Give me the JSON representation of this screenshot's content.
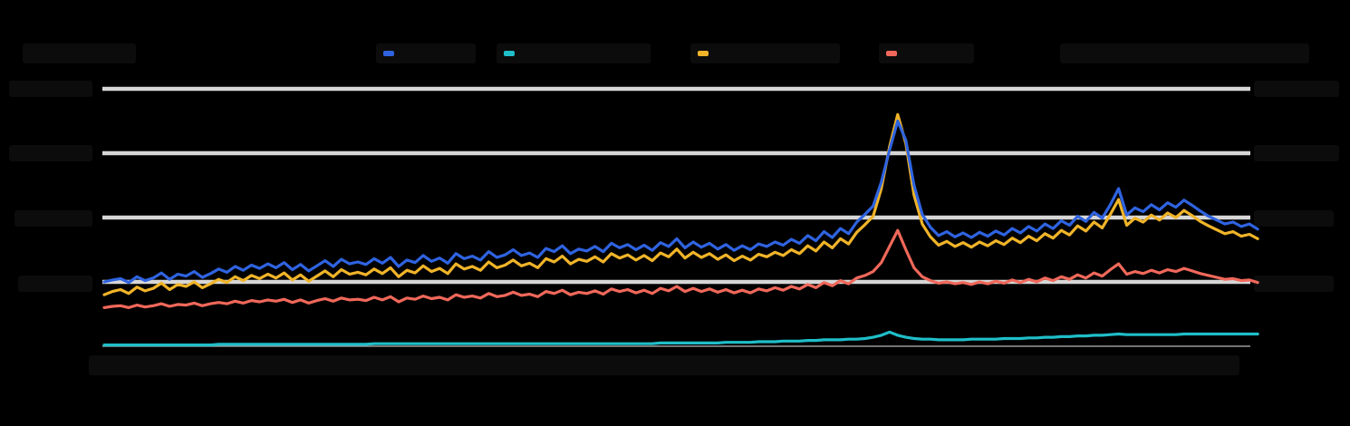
{
  "chart_data": {
    "type": "line",
    "title": "",
    "xlabel": "",
    "ylabel": "",
    "y_left_range": [
      0,
      4
    ],
    "y_right_range": [
      0,
      4
    ],
    "grid": true,
    "legend_placement": "top-center",
    "x_count": 140,
    "series": [
      {
        "key": "blue",
        "color": "#2f63e0",
        "axis": "left",
        "values": [
          1.0,
          1.03,
          1.05,
          0.99,
          1.08,
          1.02,
          1.06,
          1.14,
          1.04,
          1.12,
          1.09,
          1.16,
          1.07,
          1.13,
          1.2,
          1.15,
          1.24,
          1.18,
          1.26,
          1.21,
          1.28,
          1.22,
          1.3,
          1.19,
          1.27,
          1.17,
          1.25,
          1.33,
          1.24,
          1.35,
          1.28,
          1.31,
          1.27,
          1.36,
          1.29,
          1.38,
          1.24,
          1.34,
          1.3,
          1.41,
          1.32,
          1.37,
          1.29,
          1.44,
          1.36,
          1.4,
          1.34,
          1.47,
          1.38,
          1.42,
          1.5,
          1.41,
          1.45,
          1.38,
          1.52,
          1.47,
          1.56,
          1.44,
          1.51,
          1.48,
          1.55,
          1.47,
          1.6,
          1.53,
          1.58,
          1.5,
          1.57,
          1.49,
          1.61,
          1.55,
          1.67,
          1.53,
          1.62,
          1.54,
          1.6,
          1.51,
          1.58,
          1.49,
          1.56,
          1.5,
          1.59,
          1.55,
          1.62,
          1.57,
          1.66,
          1.6,
          1.72,
          1.64,
          1.78,
          1.69,
          1.83,
          1.75,
          1.93,
          2.05,
          2.18,
          2.55,
          3.05,
          3.5,
          3.2,
          2.5,
          2.05,
          1.85,
          1.72,
          1.78,
          1.7,
          1.76,
          1.69,
          1.77,
          1.71,
          1.79,
          1.73,
          1.83,
          1.76,
          1.86,
          1.79,
          1.9,
          1.83,
          1.95,
          1.88,
          2.02,
          1.94,
          2.08,
          1.99,
          2.2,
          2.45,
          2.04,
          2.15,
          2.09,
          2.2,
          2.12,
          2.23,
          2.16,
          2.27,
          2.19,
          2.1,
          2.02,
          1.96,
          1.9,
          1.93,
          1.86,
          1.9,
          1.82
        ]
      },
      {
        "key": "cyan",
        "color": "#1fbec8",
        "axis": "left",
        "values": [
          0.02,
          0.02,
          0.02,
          0.02,
          0.02,
          0.02,
          0.02,
          0.02,
          0.02,
          0.02,
          0.02,
          0.02,
          0.02,
          0.02,
          0.03,
          0.03,
          0.03,
          0.03,
          0.03,
          0.03,
          0.03,
          0.03,
          0.03,
          0.03,
          0.03,
          0.03,
          0.03,
          0.03,
          0.03,
          0.03,
          0.03,
          0.03,
          0.03,
          0.04,
          0.04,
          0.04,
          0.04,
          0.04,
          0.04,
          0.04,
          0.04,
          0.04,
          0.04,
          0.04,
          0.04,
          0.04,
          0.04,
          0.04,
          0.04,
          0.04,
          0.04,
          0.04,
          0.04,
          0.04,
          0.04,
          0.04,
          0.04,
          0.04,
          0.04,
          0.04,
          0.04,
          0.04,
          0.04,
          0.04,
          0.04,
          0.04,
          0.04,
          0.04,
          0.05,
          0.05,
          0.05,
          0.05,
          0.05,
          0.05,
          0.05,
          0.05,
          0.06,
          0.06,
          0.06,
          0.06,
          0.07,
          0.07,
          0.07,
          0.08,
          0.08,
          0.08,
          0.09,
          0.09,
          0.1,
          0.1,
          0.1,
          0.11,
          0.11,
          0.12,
          0.14,
          0.17,
          0.22,
          0.17,
          0.14,
          0.12,
          0.11,
          0.11,
          0.1,
          0.1,
          0.1,
          0.1,
          0.11,
          0.11,
          0.11,
          0.11,
          0.12,
          0.12,
          0.12,
          0.13,
          0.13,
          0.14,
          0.14,
          0.15,
          0.15,
          0.16,
          0.16,
          0.17,
          0.17,
          0.18,
          0.19,
          0.18,
          0.18,
          0.18,
          0.18,
          0.18,
          0.18,
          0.18,
          0.19,
          0.19,
          0.19,
          0.19,
          0.19,
          0.19,
          0.19,
          0.19,
          0.19,
          0.19
        ]
      },
      {
        "key": "orange",
        "color": "#f0b429",
        "axis": "left",
        "values": [
          0.8,
          0.85,
          0.88,
          0.82,
          0.92,
          0.86,
          0.9,
          0.98,
          0.88,
          0.96,
          0.93,
          1.0,
          0.91,
          0.97,
          1.04,
          0.99,
          1.08,
          1.02,
          1.1,
          1.05,
          1.12,
          1.06,
          1.14,
          1.03,
          1.11,
          1.01,
          1.09,
          1.17,
          1.08,
          1.19,
          1.12,
          1.15,
          1.11,
          1.2,
          1.13,
          1.22,
          1.08,
          1.18,
          1.14,
          1.25,
          1.16,
          1.21,
          1.13,
          1.28,
          1.2,
          1.24,
          1.18,
          1.31,
          1.22,
          1.26,
          1.34,
          1.25,
          1.29,
          1.22,
          1.36,
          1.31,
          1.4,
          1.28,
          1.35,
          1.32,
          1.39,
          1.31,
          1.44,
          1.37,
          1.42,
          1.34,
          1.41,
          1.33,
          1.45,
          1.39,
          1.51,
          1.37,
          1.46,
          1.38,
          1.44,
          1.35,
          1.42,
          1.33,
          1.4,
          1.34,
          1.43,
          1.39,
          1.46,
          1.41,
          1.5,
          1.44,
          1.56,
          1.48,
          1.62,
          1.53,
          1.67,
          1.59,
          1.77,
          1.89,
          2.02,
          2.45,
          3.1,
          3.6,
          3.15,
          2.35,
          1.9,
          1.7,
          1.57,
          1.63,
          1.55,
          1.61,
          1.54,
          1.62,
          1.56,
          1.64,
          1.58,
          1.68,
          1.61,
          1.71,
          1.64,
          1.75,
          1.68,
          1.8,
          1.73,
          1.87,
          1.79,
          1.93,
          1.84,
          2.05,
          2.28,
          1.88,
          1.99,
          1.93,
          2.04,
          1.96,
          2.07,
          2.0,
          2.11,
          2.03,
          1.94,
          1.87,
          1.81,
          1.75,
          1.78,
          1.71,
          1.74,
          1.67
        ]
      },
      {
        "key": "red",
        "color": "#f0685a",
        "axis": "right",
        "values": [
          0.6,
          0.62,
          0.63,
          0.6,
          0.64,
          0.61,
          0.63,
          0.66,
          0.62,
          0.65,
          0.64,
          0.67,
          0.63,
          0.66,
          0.68,
          0.66,
          0.7,
          0.67,
          0.71,
          0.69,
          0.72,
          0.7,
          0.73,
          0.68,
          0.72,
          0.67,
          0.71,
          0.74,
          0.7,
          0.75,
          0.72,
          0.73,
          0.71,
          0.76,
          0.72,
          0.77,
          0.69,
          0.75,
          0.73,
          0.78,
          0.74,
          0.76,
          0.72,
          0.8,
          0.76,
          0.78,
          0.75,
          0.82,
          0.77,
          0.79,
          0.84,
          0.79,
          0.81,
          0.77,
          0.85,
          0.82,
          0.87,
          0.8,
          0.84,
          0.82,
          0.86,
          0.81,
          0.89,
          0.85,
          0.88,
          0.83,
          0.87,
          0.82,
          0.9,
          0.86,
          0.93,
          0.85,
          0.9,
          0.85,
          0.89,
          0.84,
          0.88,
          0.83,
          0.87,
          0.83,
          0.89,
          0.86,
          0.91,
          0.87,
          0.93,
          0.89,
          0.96,
          0.91,
          0.99,
          0.94,
          1.02,
          0.97,
          1.06,
          1.1,
          1.16,
          1.3,
          1.55,
          1.8,
          1.5,
          1.22,
          1.08,
          1.02,
          0.98,
          1.0,
          0.97,
          0.99,
          0.96,
          1.0,
          0.97,
          1.01,
          0.98,
          1.03,
          0.99,
          1.04,
          1.0,
          1.06,
          1.02,
          1.08,
          1.04,
          1.11,
          1.06,
          1.14,
          1.09,
          1.19,
          1.28,
          1.12,
          1.16,
          1.13,
          1.18,
          1.14,
          1.19,
          1.16,
          1.21,
          1.17,
          1.13,
          1.1,
          1.07,
          1.04,
          1.05,
          1.02,
          1.03,
          0.99
        ]
      }
    ]
  }
}
